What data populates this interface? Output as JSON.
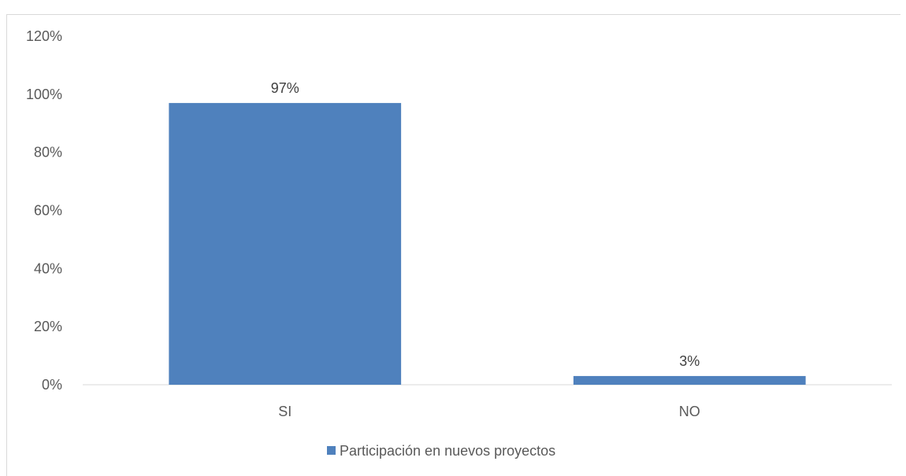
{
  "chart_data": {
    "type": "bar",
    "categories": [
      "SI",
      "NO"
    ],
    "series": [
      {
        "name": "Participación en nuevos proyectos",
        "values": [
          97,
          3
        ],
        "color": "#4f81bd"
      }
    ],
    "data_labels": [
      "97%",
      "3%"
    ],
    "y_ticks": [
      "0%",
      "20%",
      "40%",
      "60%",
      "80%",
      "100%",
      "120%"
    ],
    "ylim": [
      0,
      120
    ],
    "y_unit": "%",
    "grid": false,
    "legend_position": "bottom",
    "title": "",
    "xlabel": "",
    "ylabel": ""
  }
}
